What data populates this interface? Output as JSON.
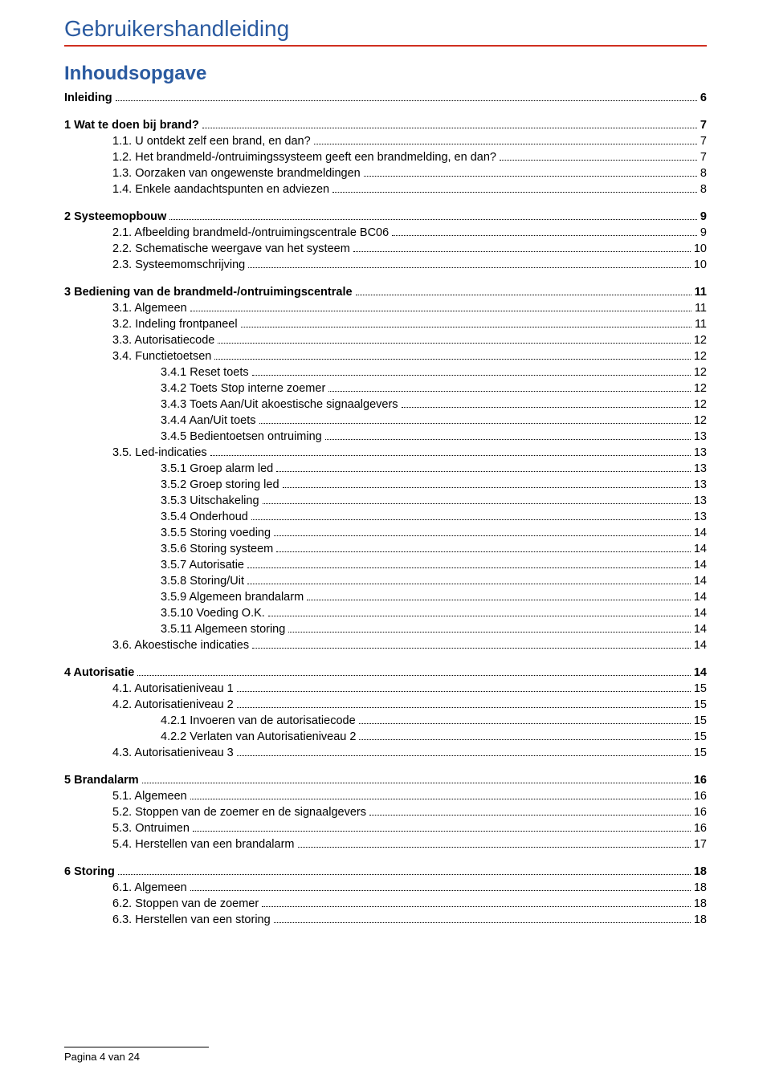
{
  "doc_title": "Gebruikershandleiding",
  "toc_title": "Inhoudsopgave",
  "footer": "Pagina 4 van 24",
  "toc": [
    {
      "label": "Inleiding",
      "page": "6",
      "bold": true,
      "level": 0,
      "gap_after": true
    },
    {
      "label": "1 Wat te doen bij brand?",
      "page": "7",
      "bold": true,
      "level": 0
    },
    {
      "label": "1.1. U ontdekt zelf een brand, en dan?",
      "page": "7",
      "bold": false,
      "level": 1
    },
    {
      "label": "1.2. Het brandmeld-/ontruimingssysteem geeft een brandmelding, en dan?",
      "page": "7",
      "bold": false,
      "level": 1
    },
    {
      "label": "1.3. Oorzaken van ongewenste brandmeldingen",
      "page": "8",
      "bold": false,
      "level": 1
    },
    {
      "label": "1.4. Enkele aandachtspunten en adviezen",
      "page": "8",
      "bold": false,
      "level": 1,
      "gap_after": true
    },
    {
      "label": "2 Systeemopbouw",
      "page": "9",
      "bold": true,
      "level": 0
    },
    {
      "label": "2.1. Afbeelding brandmeld-/ontruimingscentrale BC06",
      "page": "9",
      "bold": false,
      "level": 1
    },
    {
      "label": "2.2. Schematische weergave van het systeem",
      "page": "10",
      "bold": false,
      "level": 1
    },
    {
      "label": "2.3. Systeemomschrijving",
      "page": "10",
      "bold": false,
      "level": 1,
      "gap_after": true
    },
    {
      "label": "3 Bediening van de brandmeld-/ontruimingscentrale",
      "page": "11",
      "bold": true,
      "level": 0
    },
    {
      "label": "3.1. Algemeen",
      "page": "11",
      "bold": false,
      "level": 1
    },
    {
      "label": "3.2. Indeling frontpaneel",
      "page": "11",
      "bold": false,
      "level": 1
    },
    {
      "label": "3.3. Autorisatiecode",
      "page": "12",
      "bold": false,
      "level": 1
    },
    {
      "label": "3.4. Functietoetsen",
      "page": "12",
      "bold": false,
      "level": 1
    },
    {
      "label": "3.4.1 Reset toets",
      "page": "12",
      "bold": false,
      "level": 2
    },
    {
      "label": "3.4.2 Toets Stop interne zoemer",
      "page": "12",
      "bold": false,
      "level": 2
    },
    {
      "label": "3.4.3 Toets Aan/Uit akoestische signaalgevers",
      "page": "12",
      "bold": false,
      "level": 2
    },
    {
      "label": "3.4.4 Aan/Uit toets",
      "page": "12",
      "bold": false,
      "level": 2
    },
    {
      "label": "3.4.5 Bedientoetsen ontruiming",
      "page": "13",
      "bold": false,
      "level": 2
    },
    {
      "label": "3.5. Led-indicaties",
      "page": "13",
      "bold": false,
      "level": 1
    },
    {
      "label": "3.5.1 Groep alarm led",
      "page": "13",
      "bold": false,
      "level": 2
    },
    {
      "label": "3.5.2 Groep storing led",
      "page": "13",
      "bold": false,
      "level": 2
    },
    {
      "label": "3.5.3 Uitschakeling",
      "page": "13",
      "bold": false,
      "level": 2
    },
    {
      "label": "3.5.4 Onderhoud",
      "page": "13",
      "bold": false,
      "level": 2
    },
    {
      "label": "3.5.5 Storing voeding",
      "page": "14",
      "bold": false,
      "level": 2
    },
    {
      "label": "3.5.6 Storing systeem",
      "page": "14",
      "bold": false,
      "level": 2
    },
    {
      "label": "3.5.7 Autorisatie",
      "page": "14",
      "bold": false,
      "level": 2
    },
    {
      "label": "3.5.8 Storing/Uit",
      "page": "14",
      "bold": false,
      "level": 2
    },
    {
      "label": "3.5.9 Algemeen brandalarm",
      "page": "14",
      "bold": false,
      "level": 2
    },
    {
      "label": "3.5.10 Voeding O.K.",
      "page": "14",
      "bold": false,
      "level": 2
    },
    {
      "label": "3.5.11 Algemeen storing",
      "page": "14",
      "bold": false,
      "level": 2
    },
    {
      "label": "3.6. Akoestische indicaties",
      "page": "14",
      "bold": false,
      "level": 1,
      "gap_after": true
    },
    {
      "label": "4 Autorisatie",
      "page": "14",
      "bold": true,
      "level": 0
    },
    {
      "label": "4.1. Autorisatieniveau 1",
      "page": "15",
      "bold": false,
      "level": 1
    },
    {
      "label": "4.2. Autorisatieniveau 2",
      "page": "15",
      "bold": false,
      "level": 1
    },
    {
      "label": "4.2.1 Invoeren van de autorisatiecode",
      "page": "15",
      "bold": false,
      "level": 2
    },
    {
      "label": "4.2.2 Verlaten van Autorisatieniveau 2",
      "page": "15",
      "bold": false,
      "level": 2
    },
    {
      "label": "4.3. Autorisatieniveau 3",
      "page": "15",
      "bold": false,
      "level": 1,
      "gap_after": true
    },
    {
      "label": "5 Brandalarm",
      "page": "16",
      "bold": true,
      "level": 0
    },
    {
      "label": "5.1. Algemeen",
      "page": "16",
      "bold": false,
      "level": 1
    },
    {
      "label": "5.2. Stoppen van de zoemer en de signaalgevers",
      "page": "16",
      "bold": false,
      "level": 1
    },
    {
      "label": "5.3. Ontruimen",
      "page": "16",
      "bold": false,
      "level": 1
    },
    {
      "label": "5.4. Herstellen van een brandalarm",
      "page": "17",
      "bold": false,
      "level": 1,
      "gap_after": true
    },
    {
      "label": "6 Storing",
      "page": "18",
      "bold": true,
      "level": 0
    },
    {
      "label": "6.1. Algemeen",
      "page": "18",
      "bold": false,
      "level": 1
    },
    {
      "label": "6.2. Stoppen van de zoemer",
      "page": "18",
      "bold": false,
      "level": 1
    },
    {
      "label": "6.3. Herstellen van een storing",
      "page": "18",
      "bold": false,
      "level": 1
    }
  ]
}
